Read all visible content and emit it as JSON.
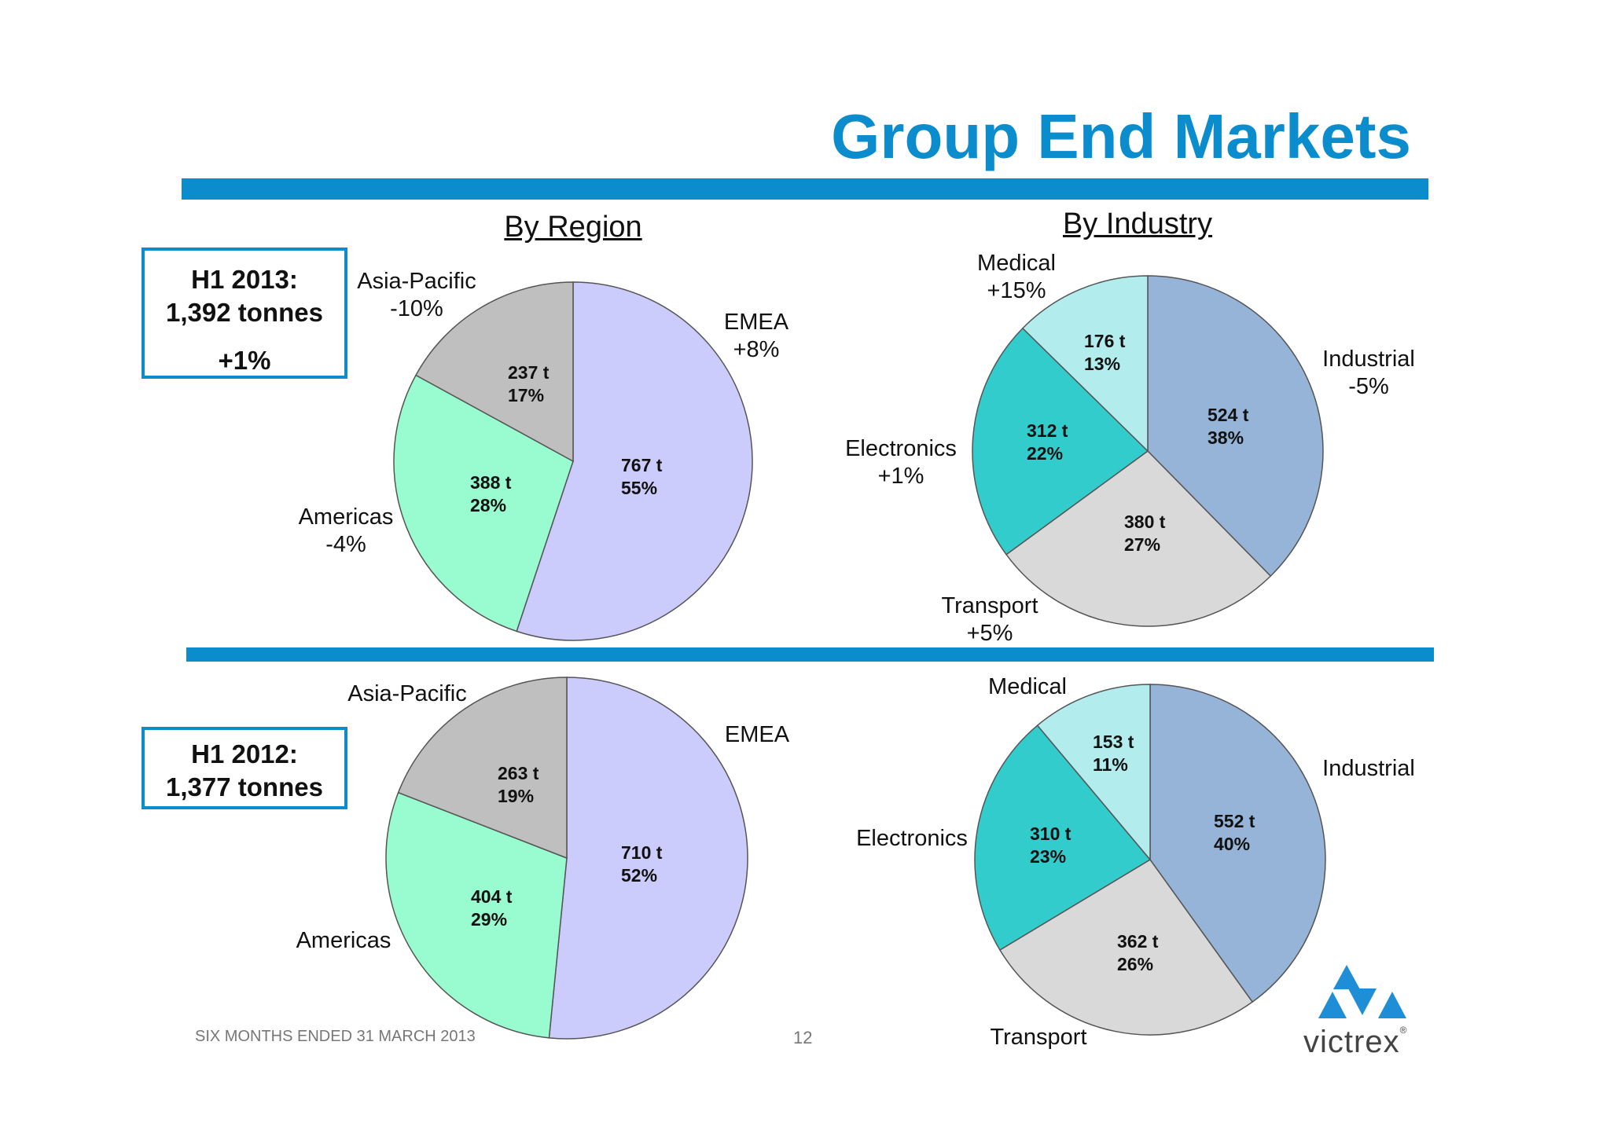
{
  "title": "Group End Markets",
  "headers": {
    "region": "By Region",
    "industry": "By Industry"
  },
  "h1_2013": {
    "line1": "H1 2013:",
    "line2": "1,392 tonnes",
    "growth": "+1%"
  },
  "h1_2012": {
    "line1": "H1 2012:",
    "line2": "1,377 tonnes"
  },
  "footer": {
    "left": "SIX MONTHS ENDED 31 MARCH 2013",
    "page": "12"
  },
  "logo": {
    "wordmark": "victrex",
    "reg": "®"
  },
  "colors": {
    "accent": "#0b8ccc",
    "emea": "#ccccfc",
    "americas": "#99fcd0",
    "asia_pacific": "#bfbfbf",
    "industrial": "#96b4d8",
    "transport": "#d9d9d9",
    "electronics": "#33cccc",
    "medical": "#b3ecec"
  },
  "labels": {
    "r13": {
      "emea": {
        "name": "EMEA",
        "change": "+8%"
      },
      "americas": {
        "name": "Americas",
        "change": "-4%"
      },
      "asia_pacific": {
        "name": "Asia-Pacific",
        "change": "-10%"
      }
    },
    "i13": {
      "industrial": {
        "name": "Industrial",
        "change": "-5%"
      },
      "transport": {
        "name": "Transport",
        "change": "+5%"
      },
      "electronics": {
        "name": "Electronics",
        "change": "+1%"
      },
      "medical": {
        "name": "Medical",
        "change": "+15%"
      }
    },
    "r12": {
      "emea": "EMEA",
      "americas": "Americas",
      "asia_pacific": "Asia-Pacific"
    },
    "i12": {
      "industrial": "Industrial",
      "transport": "Transport",
      "electronics": "Electronics",
      "medical": "Medical"
    }
  },
  "chart_data": [
    {
      "type": "pie",
      "title": "By Region",
      "period": "H1 2013",
      "categories": [
        "EMEA",
        "Americas",
        "Asia-Pacific"
      ],
      "values": [
        767,
        388,
        237
      ],
      "value_labels": [
        "767 t",
        "388 t",
        "237 t"
      ],
      "percent_labels": [
        "55%",
        "28%",
        "17%"
      ],
      "change_vs_prior": [
        "+8%",
        "-4%",
        "-10%"
      ]
    },
    {
      "type": "pie",
      "title": "By Industry",
      "period": "H1 2013",
      "categories": [
        "Industrial",
        "Transport",
        "Electronics",
        "Medical"
      ],
      "values": [
        524,
        380,
        312,
        176
      ],
      "value_labels": [
        "524 t",
        "380 t",
        "312 t",
        "176 t"
      ],
      "percent_labels": [
        "38%",
        "27%",
        "22%",
        "13%"
      ],
      "change_vs_prior": [
        "-5%",
        "+5%",
        "+1%",
        "+15%"
      ]
    },
    {
      "type": "pie",
      "period": "H1 2012",
      "categories": [
        "EMEA",
        "Americas",
        "Asia-Pacific"
      ],
      "values": [
        710,
        404,
        263
      ],
      "value_labels": [
        "710 t",
        "404 t",
        "263 t"
      ],
      "percent_labels": [
        "52%",
        "29%",
        "19%"
      ]
    },
    {
      "type": "pie",
      "period": "H1 2012",
      "categories": [
        "Industrial",
        "Transport",
        "Electronics",
        "Medical"
      ],
      "values": [
        552,
        362,
        310,
        153
      ],
      "value_labels": [
        "552 t",
        "362 t",
        "310 t",
        "153 t"
      ],
      "percent_labels": [
        "40%",
        "26%",
        "23%",
        "11%"
      ]
    }
  ]
}
